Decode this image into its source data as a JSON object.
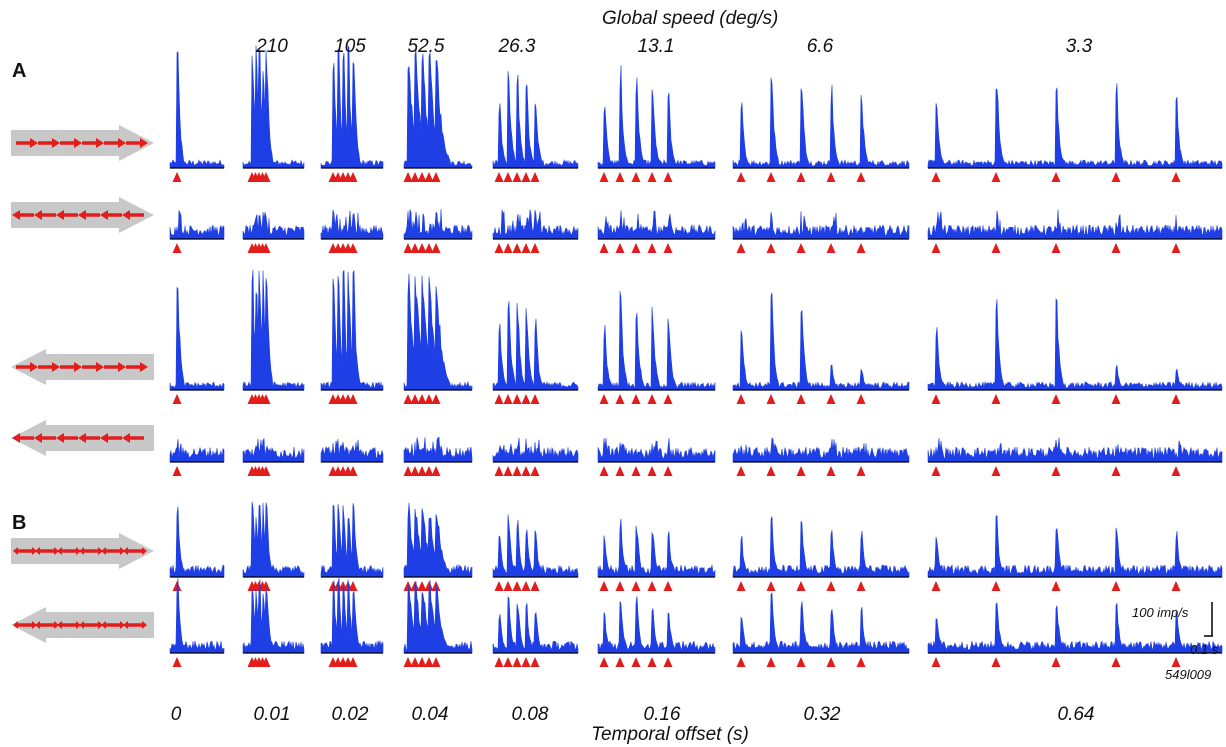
{
  "figure": {
    "top_axis_title": "Global speed (deg/s)",
    "bottom_axis_title": "Temporal offset (s)",
    "panels": [
      "A",
      "B"
    ],
    "speeds": [
      "210",
      "105",
      "52.5",
      "26.3",
      "13.1",
      "6.6",
      "3.3"
    ],
    "offsets": [
      "0",
      "0.01",
      "0.02",
      "0.04",
      "0.08",
      "0.16",
      "0.32",
      "0.64"
    ],
    "scale_bar": {
      "vertical_label": "100 imp/s",
      "horizontal_label": "0.1 s"
    },
    "figure_id": "549l009",
    "colors": {
      "psth": "#1f3fe6",
      "marker": "#e31c1c",
      "arrow_body": "#c8c8c8",
      "baseline": "#000000"
    },
    "rows": [
      {
        "panel": "A",
        "stimulus": "right",
        "response": "strong"
      },
      {
        "panel": "A",
        "stimulus": "left",
        "response": "weak"
      },
      {
        "panel": "A",
        "stimulus": "right-reversed-shaft",
        "response": "strong"
      },
      {
        "panel": "A",
        "stimulus": "left-reversed-shaft",
        "response": "weak"
      },
      {
        "panel": "B",
        "stimulus": "bidirectional-right",
        "response": "medium"
      },
      {
        "panel": "B",
        "stimulus": "bidirectional-left",
        "response": "medium"
      }
    ]
  }
}
